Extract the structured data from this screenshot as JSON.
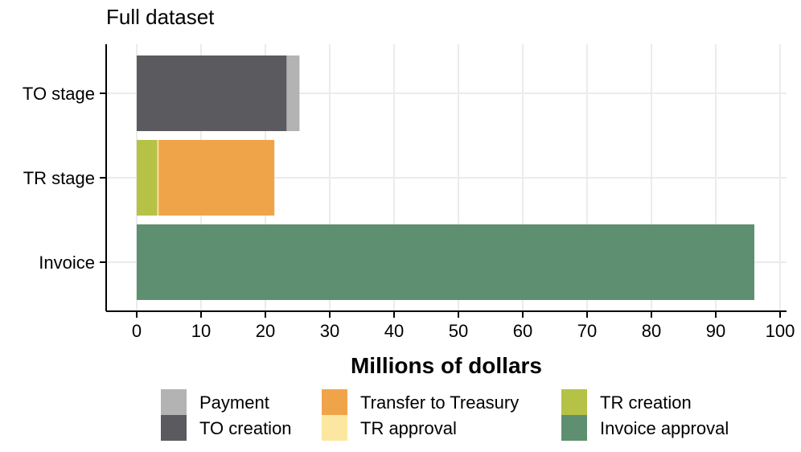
{
  "chart_data": {
    "type": "bar",
    "orientation": "horizontal",
    "stacked": true,
    "title": "Full dataset",
    "xlabel": "Millions of dollars",
    "ylabel": "",
    "xlim": [
      0,
      100
    ],
    "xticks": [
      "0",
      "10",
      "20",
      "30",
      "40",
      "50",
      "60",
      "70",
      "80",
      "90",
      "100"
    ],
    "categories": [
      "TO stage",
      "TR stage",
      "Invoice"
    ],
    "grid": true,
    "legend_position": "bottom",
    "series": [
      {
        "name": "Payment",
        "color": "#b3b3b3",
        "values": [
          2.0,
          0,
          0
        ]
      },
      {
        "name": "TO creation",
        "color": "#5b5a5e",
        "values": [
          23.3,
          0,
          0
        ]
      },
      {
        "name": "Transfer to Treasury",
        "color": "#f0a44a",
        "values": [
          0,
          18.0,
          0
        ]
      },
      {
        "name": "TR approval",
        "color": "#fbe7a0",
        "values": [
          0,
          0.2,
          0
        ]
      },
      {
        "name": "TR creation",
        "color": "#b5c245",
        "values": [
          0,
          3.2,
          0
        ]
      },
      {
        "name": "Invoice approval",
        "color": "#5e8f70",
        "values": [
          0,
          0,
          96.0
        ]
      }
    ],
    "stack_order": [
      "TO creation",
      "Payment",
      "TR creation",
      "TR approval",
      "Transfer to Treasury",
      "Invoice approval"
    ],
    "legend_order": [
      "Payment",
      "TO creation",
      "Transfer to Treasury",
      "TR approval",
      "TR creation",
      "Invoice approval"
    ]
  }
}
